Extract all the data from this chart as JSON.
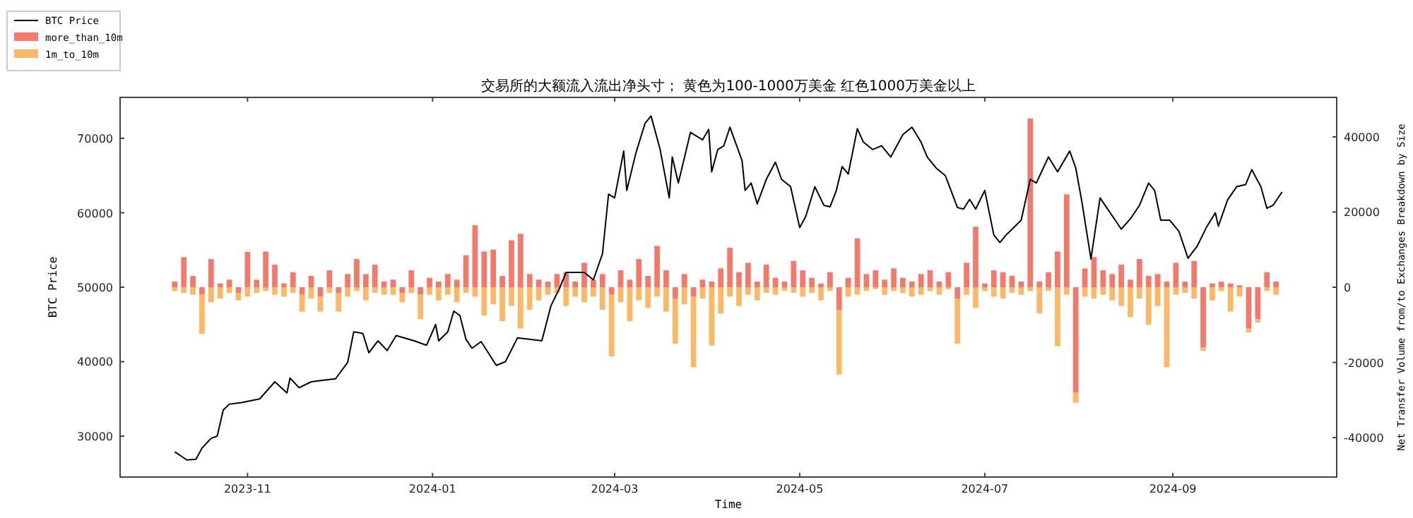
{
  "chart_data": {
    "type": "bar",
    "title": "交易所的大额流入流出净头寸； 黄色为100-1000万美金 红色1000万美金以上",
    "xlabel": "Time",
    "ylabel": "BTC Price",
    "y2label": "Net Transfer Volume from/to Exchanges Breakdown by Size",
    "legend": "top left",
    "stacked": true,
    "xlim": [
      "2023-09-20",
      "2024-10-25"
    ],
    "xticks": [
      {
        "value": "2023-11-01",
        "label": "2023-11"
      },
      {
        "value": "2024-01-01",
        "label": "2024-01"
      },
      {
        "value": "2024-03-01",
        "label": "2024-03"
      },
      {
        "value": "2024-05-01",
        "label": "2024-05"
      },
      {
        "value": "2024-07-01",
        "label": "2024-07"
      },
      {
        "value": "2024-09-01",
        "label": "2024-09"
      }
    ],
    "ylim": [
      24500,
      75500
    ],
    "yticks": [
      30000,
      40000,
      50000,
      60000,
      70000
    ],
    "y2lim": [
      -50500,
      50500
    ],
    "y2ticks": [
      -40000,
      -20000,
      0,
      20000,
      40000
    ],
    "x": [
      "2023-10-08",
      "2023-10-11",
      "2023-10-14",
      "2023-10-17",
      "2023-10-20",
      "2023-10-23",
      "2023-10-26",
      "2023-10-29",
      "2023-11-01",
      "2023-11-04",
      "2023-11-07",
      "2023-11-10",
      "2023-11-13",
      "2023-11-16",
      "2023-11-19",
      "2023-11-22",
      "2023-11-25",
      "2023-11-28",
      "2023-12-01",
      "2023-12-04",
      "2023-12-07",
      "2023-12-10",
      "2023-12-13",
      "2023-12-16",
      "2023-12-19",
      "2023-12-22",
      "2023-12-25",
      "2023-12-28",
      "2023-12-31",
      "2024-01-03",
      "2024-01-06",
      "2024-01-09",
      "2024-01-12",
      "2024-01-15",
      "2024-01-18",
      "2024-01-21",
      "2024-01-24",
      "2024-01-27",
      "2024-01-30",
      "2024-02-02",
      "2024-02-05",
      "2024-02-08",
      "2024-02-11",
      "2024-02-14",
      "2024-02-17",
      "2024-02-20",
      "2024-02-23",
      "2024-02-26",
      "2024-02-29",
      "2024-03-03",
      "2024-03-06",
      "2024-03-09",
      "2024-03-12",
      "2024-03-15",
      "2024-03-18",
      "2024-03-21",
      "2024-03-24",
      "2024-03-27",
      "2024-03-30",
      "2024-04-02",
      "2024-04-05",
      "2024-04-08",
      "2024-04-11",
      "2024-04-14",
      "2024-04-17",
      "2024-04-20",
      "2024-04-23",
      "2024-04-26",
      "2024-04-29",
      "2024-05-02",
      "2024-05-05",
      "2024-05-08",
      "2024-05-11",
      "2024-05-14",
      "2024-05-17",
      "2024-05-20",
      "2024-05-23",
      "2024-05-26",
      "2024-05-29",
      "2024-06-01",
      "2024-06-04",
      "2024-06-07",
      "2024-06-10",
      "2024-06-13",
      "2024-06-16",
      "2024-06-19",
      "2024-06-22",
      "2024-06-25",
      "2024-06-28",
      "2024-07-01",
      "2024-07-04",
      "2024-07-07",
      "2024-07-10",
      "2024-07-13",
      "2024-07-16",
      "2024-07-19",
      "2024-07-22",
      "2024-07-25",
      "2024-07-28",
      "2024-07-31",
      "2024-08-03",
      "2024-08-06",
      "2024-08-09",
      "2024-08-12",
      "2024-08-15",
      "2024-08-18",
      "2024-08-21",
      "2024-08-24",
      "2024-08-27",
      "2024-08-30",
      "2024-09-02",
      "2024-09-05",
      "2024-09-08",
      "2024-09-11",
      "2024-09-14",
      "2024-09-17",
      "2024-09-20",
      "2024-09-23",
      "2024-09-26",
      "2024-09-29",
      "2024-10-02",
      "2024-10-05"
    ],
    "series": [
      {
        "name": "BTC Price",
        "type": "line",
        "color": "#000000",
        "x": [
          "2023-10-08",
          "2023-10-12",
          "2023-10-15",
          "2023-10-17",
          "2023-10-20",
          "2023-10-22",
          "2023-10-24",
          "2023-10-26",
          "2023-10-30",
          "2023-11-05",
          "2023-11-10",
          "2023-11-14",
          "2023-11-15",
          "2023-11-18",
          "2023-11-22",
          "2023-11-26",
          "2023-11-30",
          "2023-12-04",
          "2023-12-06",
          "2023-12-09",
          "2023-12-11",
          "2023-12-14",
          "2023-12-17",
          "2023-12-20",
          "2023-12-26",
          "2023-12-30",
          "2024-01-02",
          "2024-01-03",
          "2024-01-06",
          "2024-01-08",
          "2024-01-10",
          "2024-01-12",
          "2024-01-14",
          "2024-01-17",
          "2024-01-22",
          "2024-01-25",
          "2024-01-29",
          "2024-02-02",
          "2024-02-06",
          "2024-02-09",
          "2024-02-12",
          "2024-02-14",
          "2024-02-20",
          "2024-02-23",
          "2024-02-26",
          "2024-02-28",
          "2024-03-01",
          "2024-03-04",
          "2024-03-05",
          "2024-03-08",
          "2024-03-11",
          "2024-03-13",
          "2024-03-16",
          "2024-03-19",
          "2024-03-20",
          "2024-03-22",
          "2024-03-26",
          "2024-03-30",
          "2024-04-01",
          "2024-04-02",
          "2024-04-04",
          "2024-04-06",
          "2024-04-08",
          "2024-04-12",
          "2024-04-13",
          "2024-04-15",
          "2024-04-17",
          "2024-04-20",
          "2024-04-23",
          "2024-04-25",
          "2024-04-28",
          "2024-05-01",
          "2024-05-03",
          "2024-05-06",
          "2024-05-09",
          "2024-05-11",
          "2024-05-13",
          "2024-05-15",
          "2024-05-17",
          "2024-05-20",
          "2024-05-22",
          "2024-05-25",
          "2024-05-28",
          "2024-05-31",
          "2024-06-04",
          "2024-06-07",
          "2024-06-10",
          "2024-06-12",
          "2024-06-15",
          "2024-06-18",
          "2024-06-22",
          "2024-06-24",
          "2024-06-26",
          "2024-06-28",
          "2024-07-01",
          "2024-07-04",
          "2024-07-06",
          "2024-07-08",
          "2024-07-10",
          "2024-07-13",
          "2024-07-16",
          "2024-07-18",
          "2024-07-22",
          "2024-07-25",
          "2024-07-29",
          "2024-07-31",
          "2024-08-02",
          "2024-08-05",
          "2024-08-08",
          "2024-08-10",
          "2024-08-13",
          "2024-08-15",
          "2024-08-18",
          "2024-08-21",
          "2024-08-24",
          "2024-08-26",
          "2024-08-28",
          "2024-08-31",
          "2024-09-03",
          "2024-09-06",
          "2024-09-09",
          "2024-09-12",
          "2024-09-15",
          "2024-09-16",
          "2024-09-19",
          "2024-09-22",
          "2024-09-25",
          "2024-09-27",
          "2024-09-30",
          "2024-10-02",
          "2024-10-04",
          "2024-10-07"
        ],
        "values": [
          27900,
          26800,
          26900,
          28400,
          29700,
          30000,
          33500,
          34300,
          34500,
          35000,
          37300,
          35800,
          37800,
          36500,
          37300,
          37500,
          37700,
          39900,
          44000,
          43800,
          41200,
          42800,
          41500,
          43500,
          42800,
          42200,
          45000,
          42800,
          44000,
          46800,
          46200,
          43000,
          41800,
          42700,
          39500,
          40000,
          43200,
          43000,
          42800,
          47500,
          50000,
          52000,
          52000,
          51000,
          54500,
          62500,
          62000,
          68300,
          63000,
          68000,
          72000,
          73000,
          68500,
          62000,
          67500,
          64000,
          70800,
          69800,
          71200,
          65500,
          68500,
          69000,
          71500,
          67000,
          63000,
          64000,
          61200,
          64500,
          66800,
          64500,
          63500,
          58000,
          59500,
          63500,
          61000,
          60800,
          62900,
          66200,
          65200,
          71300,
          69500,
          68500,
          69000,
          67500,
          70500,
          71500,
          69500,
          67500,
          66000,
          65000,
          60700,
          60500,
          61800,
          60500,
          63000,
          57000,
          56000,
          57000,
          57800,
          59000,
          64500,
          64000,
          67500,
          65500,
          68300,
          66000,
          61500,
          53800,
          62000,
          60800,
          59000,
          57800,
          59200,
          61000,
          64000,
          63000,
          59000,
          59000,
          57500,
          53900,
          55500,
          58000,
          60000,
          58200,
          61700,
          63500,
          63800,
          65800,
          63500,
          60600,
          61000,
          62800
        ]
      },
      {
        "name": "more_than_10m",
        "axis": "y2",
        "color": "#f4796b",
        "values": [
          1500,
          8000,
          3000,
          -2000,
          7500,
          1000,
          2000,
          -1500,
          9400,
          2000,
          9500,
          6000,
          1000,
          4000,
          -2000,
          3000,
          -2500,
          4500,
          -1500,
          3500,
          7500,
          3500,
          6000,
          1500,
          2000,
          -1500,
          4500,
          -2000,
          2500,
          1500,
          3500,
          2000,
          8500,
          16500,
          9500,
          10000,
          3000,
          12500,
          14200,
          3500,
          2000,
          1500,
          3500,
          4000,
          1500,
          6500,
          2000,
          3500,
          -2000,
          4500,
          2000,
          7500,
          3000,
          11000,
          4500,
          -3000,
          3500,
          -2500,
          2000,
          1500,
          5000,
          10500,
          4000,
          6500,
          1500,
          6000,
          2500,
          1500,
          7000,
          4500,
          2500,
          1000,
          4000,
          -6000,
          2500,
          13000,
          3500,
          4500,
          2000,
          5000,
          2500,
          1500,
          3500,
          4500,
          1500,
          4000,
          -3000,
          6500,
          16100,
          1000,
          4500,
          4000,
          3000,
          1500,
          44900,
          1500,
          4000,
          9500,
          24700,
          -28000,
          5000,
          8000,
          4500,
          3500,
          6000,
          2000,
          7500,
          3000,
          3500,
          1500,
          6500,
          1500,
          7000,
          -16000,
          1000,
          1500,
          1000,
          500,
          -11000,
          -8500,
          4000,
          1500
        ]
      },
      {
        "name": "1m_to_10m",
        "axis": "y2",
        "color": "#fdb863",
        "values": [
          -1000,
          -1500,
          -2000,
          -10400,
          -4000,
          -3000,
          -1500,
          -2000,
          -2500,
          -1500,
          -1000,
          -2000,
          -2500,
          -1500,
          -4500,
          -3000,
          -4000,
          -1500,
          -5000,
          -2500,
          -1000,
          -3500,
          -1500,
          -2000,
          -2000,
          -2500,
          -1500,
          -6500,
          -2000,
          -3500,
          -2000,
          -4000,
          -1500,
          -2500,
          -7500,
          -4500,
          -9000,
          -5000,
          -11000,
          -6000,
          -3500,
          -2000,
          -1500,
          -5000,
          -2500,
          -4000,
          -2500,
          -6000,
          -16400,
          -4000,
          -9000,
          -3500,
          -5500,
          -2500,
          -6500,
          -12000,
          -4500,
          -18800,
          -3000,
          -15500,
          -7000,
          -2500,
          -5000,
          -2000,
          -3500,
          -1500,
          -2000,
          -1000,
          -1500,
          -2500,
          -1500,
          -3500,
          -1000,
          -17200,
          -2500,
          -2000,
          -1000,
          -500,
          -2000,
          -1000,
          -1500,
          -2500,
          -2000,
          -1000,
          -2000,
          -500,
          -12000,
          -2000,
          -5500,
          -1000,
          -2500,
          -3000,
          -1500,
          -2000,
          -1000,
          -7000,
          -1000,
          -15700,
          -2000,
          -2700,
          -2500,
          -3000,
          -2000,
          -3500,
          -5000,
          -8000,
          -3000,
          -10000,
          -5000,
          -21300,
          -2000,
          -1500,
          -3000,
          -900,
          -3500,
          -1000,
          -6500,
          -2500,
          -1000,
          -900,
          -1000,
          -2000
        ]
      }
    ]
  }
}
